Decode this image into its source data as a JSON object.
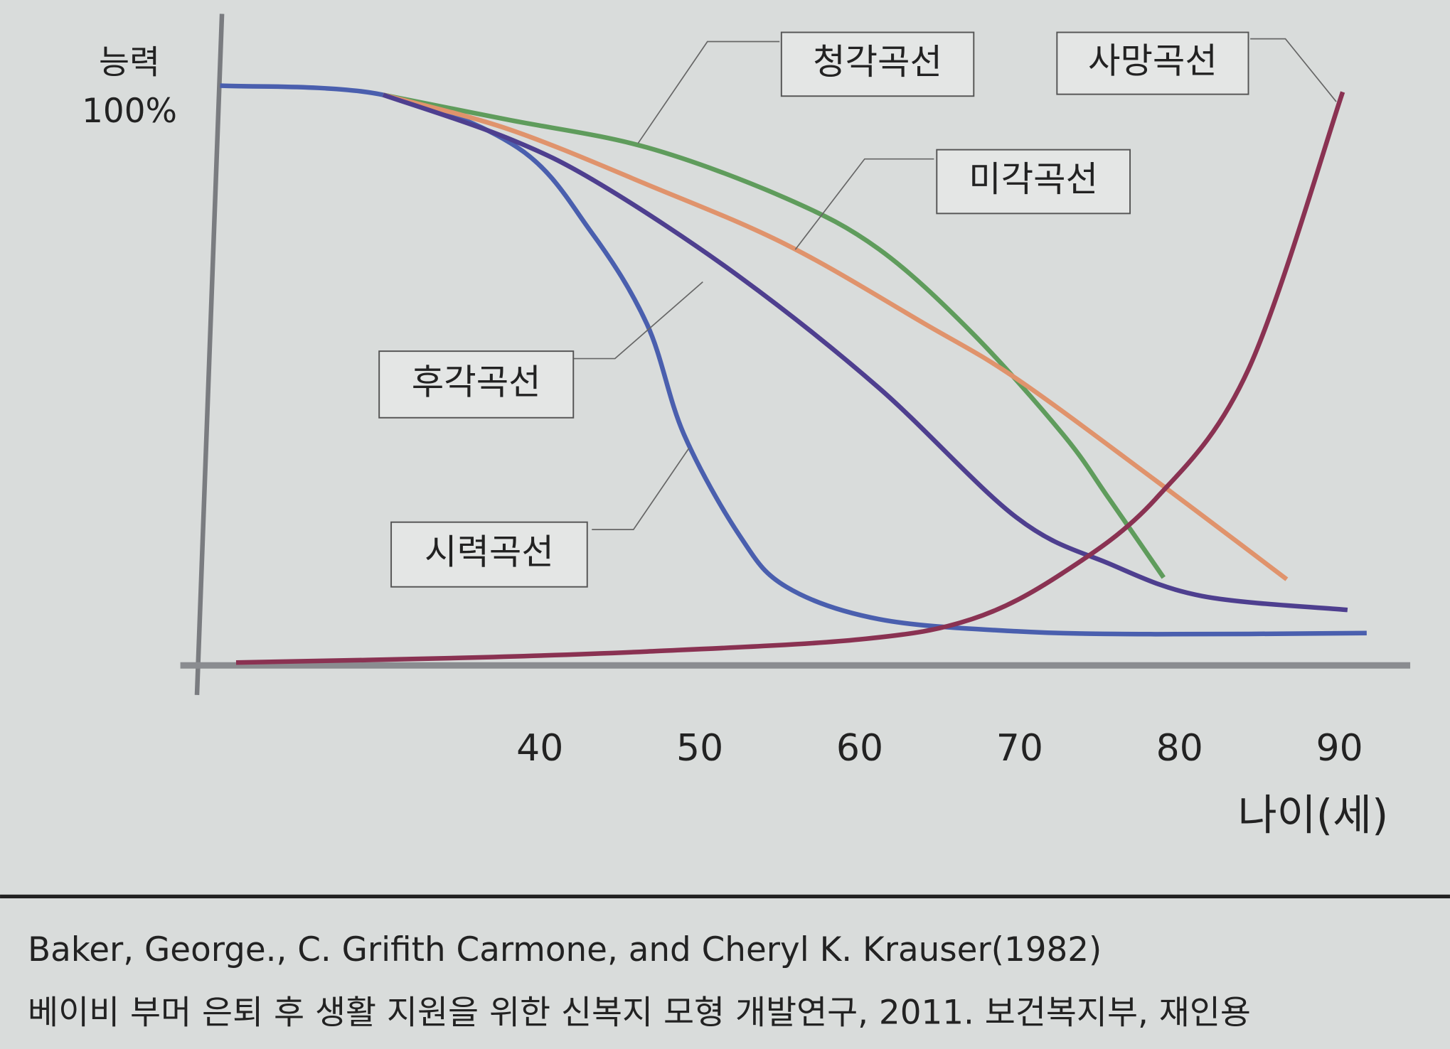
{
  "chart_data": {
    "type": "line",
    "ylabel": "능력",
    "xlabel": "나이(세)",
    "xlim": [
      20,
      95
    ],
    "xticks": [
      40,
      50,
      60,
      70,
      80,
      90
    ],
    "ylim": [
      0,
      110
    ],
    "yticks": [
      {
        "value": 100,
        "label": "100%"
      }
    ],
    "series": [
      {
        "name": "시력곡선",
        "color": "#4a5fae",
        "x": [
          20,
          30.2,
          38.6,
          43.2,
          46.7,
          49,
          52.5,
          55.4,
          61.2,
          69.8,
          78.5,
          91.7
        ],
        "values": [
          100.3,
          98.7,
          89.6,
          75,
          59,
          40,
          22.4,
          13.6,
          8,
          5.9,
          5.4,
          5.6
        ]
      },
      {
        "name": "청각곡선",
        "color": "#5f9c5c",
        "x": [
          30.2,
          38,
          46.7,
          55.4,
          61.2,
          67,
          72.7,
          75.6,
          79
        ],
        "values": [
          98.7,
          94.4,
          89.6,
          80.8,
          72,
          57.6,
          40,
          28.8,
          15.2
        ]
      },
      {
        "name": "미각곡선",
        "color": "#e0936c",
        "x": [
          30.2,
          38,
          46.7,
          55.4,
          64,
          69.8,
          78.5,
          86.7
        ],
        "values": [
          98.7,
          92.8,
          83.2,
          72.8,
          59.2,
          49.6,
          32,
          14.9
        ]
      },
      {
        "name": "후각곡선",
        "color": "#4e3f8f",
        "x": [
          30.2,
          38,
          43.8,
          52.5,
          61.2,
          69.8,
          75.6,
          81.4,
          90.5
        ],
        "values": [
          98.7,
          91.2,
          83.2,
          67.2,
          48,
          25.6,
          17.6,
          12,
          9.6
        ]
      },
      {
        "name": "사망곡선",
        "color": "#8a3252",
        "x": [
          21,
          35.1,
          46.7,
          60,
          67,
          72.7,
          78.5,
          84.3,
          90.2
        ],
        "values": [
          0.5,
          1.3,
          2.4,
          4.5,
          8,
          16,
          28.8,
          51.2,
          99.2
        ]
      }
    ]
  },
  "source": [
    "Baker, George., C. Grifith Carmone, and Cheryl K. Krauser(1982)",
    "베이비 부머 은퇴 후 생활 지원을 위한 신복지 모형 개발연구, 2011. 보건복지부, 재인용"
  ]
}
